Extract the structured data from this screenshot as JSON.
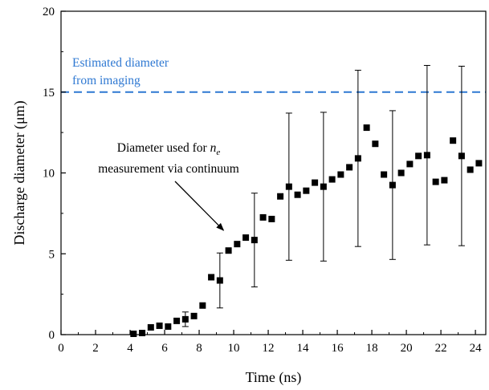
{
  "chart_data": {
    "type": "scatter",
    "xlabel": "Time (ns)",
    "ylabel": "Discharge diameter (μm)",
    "xlim": [
      0,
      24.6
    ],
    "ylim": [
      0,
      20
    ],
    "xticks": [
      0,
      2,
      4,
      6,
      8,
      10,
      12,
      14,
      16,
      18,
      20,
      22,
      24
    ],
    "yticks": [
      0,
      5,
      10,
      15,
      20
    ],
    "grid": false,
    "series": [
      {
        "marker": "square",
        "color": "#000000",
        "points": [
          {
            "x": 4.2,
            "y": 0.05
          },
          {
            "x": 4.7,
            "y": 0.1
          },
          {
            "x": 5.2,
            "y": 0.45
          },
          {
            "x": 5.7,
            "y": 0.55
          },
          {
            "x": 6.2,
            "y": 0.5
          },
          {
            "x": 6.7,
            "y": 0.85
          },
          {
            "x": 7.2,
            "y": 0.95,
            "err": 0.45
          },
          {
            "x": 7.7,
            "y": 1.15
          },
          {
            "x": 8.2,
            "y": 1.8
          },
          {
            "x": 8.7,
            "y": 3.55
          },
          {
            "x": 9.2,
            "y": 3.35,
            "err": 1.7
          },
          {
            "x": 9.7,
            "y": 5.2
          },
          {
            "x": 10.2,
            "y": 5.6
          },
          {
            "x": 10.7,
            "y": 6.0
          },
          {
            "x": 11.2,
            "y": 5.85,
            "err": 2.9
          },
          {
            "x": 11.7,
            "y": 7.25
          },
          {
            "x": 12.2,
            "y": 7.15
          },
          {
            "x": 12.7,
            "y": 8.55
          },
          {
            "x": 13.2,
            "y": 9.15,
            "err": 4.55
          },
          {
            "x": 13.7,
            "y": 8.65
          },
          {
            "x": 14.2,
            "y": 8.9
          },
          {
            "x": 14.7,
            "y": 9.4
          },
          {
            "x": 15.2,
            "y": 9.15,
            "err": 4.6
          },
          {
            "x": 15.7,
            "y": 9.6
          },
          {
            "x": 16.2,
            "y": 9.9
          },
          {
            "x": 16.7,
            "y": 10.35
          },
          {
            "x": 17.2,
            "y": 10.9,
            "err": 5.45
          },
          {
            "x": 17.7,
            "y": 12.8
          },
          {
            "x": 18.2,
            "y": 11.8
          },
          {
            "x": 18.7,
            "y": 9.9
          },
          {
            "x": 19.2,
            "y": 9.25,
            "err": 4.6
          },
          {
            "x": 19.7,
            "y": 10.0
          },
          {
            "x": 20.2,
            "y": 10.55
          },
          {
            "x": 20.7,
            "y": 11.05
          },
          {
            "x": 21.2,
            "y": 11.1,
            "err": 5.55
          },
          {
            "x": 21.7,
            "y": 9.45
          },
          {
            "x": 22.2,
            "y": 9.55
          },
          {
            "x": 22.7,
            "y": 12.0
          },
          {
            "x": 23.2,
            "y": 11.05,
            "err": 5.55
          },
          {
            "x": 23.7,
            "y": 10.2
          },
          {
            "x": 24.2,
            "y": 10.6
          }
        ]
      }
    ],
    "reference_line": {
      "y": 15,
      "style": "dashed",
      "color": "#2e78d2",
      "label_lines": [
        "Estimated diameter",
        "from imaging"
      ]
    },
    "annotation": {
      "line1_prefix": "Diameter used for ",
      "line1_var": "n",
      "line1_sub": "e",
      "line2": "measurement via continuum",
      "arrow_target": {
        "x": 9.6,
        "y": 6.2
      }
    }
  }
}
